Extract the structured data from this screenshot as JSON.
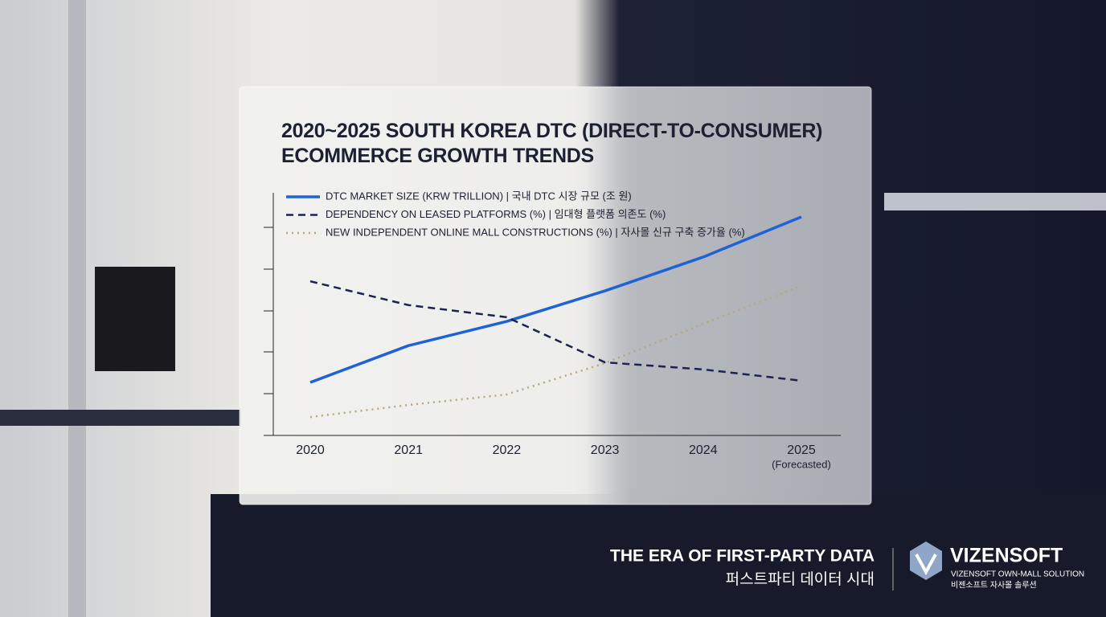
{
  "chart_data": {
    "type": "line",
    "title": "2020~2025 SOUTH KOREA DTC (DIRECT-TO-CONSUMER) ECOMMERCE GROWTH TRENDS",
    "categories": [
      "2020",
      "2021",
      "2022",
      "2023",
      "2024",
      "2025"
    ],
    "category_note": "(Forecasted)",
    "ylim": [
      0,
      6
    ],
    "series": [
      {
        "name": "DTC MARKET SIZE (KRW TRILLION) | 국내 DTC 시장 규모 (조 원)",
        "color": "#1e63d6",
        "dash": "solid",
        "values": [
          1.27,
          2.15,
          2.73,
          3.46,
          4.27,
          5.23
        ]
      },
      {
        "name": "DEPENDENCY ON LEASED PLATFORMS (%) | 임대형 플랫폼 의존도 (%)",
        "color": "#1b2450",
        "dash": "dashed",
        "values": [
          3.69,
          3.12,
          2.83,
          1.75,
          1.58,
          1.31
        ]
      },
      {
        "name": "NEW INDEPENDENT ONLINE MALL CONSTRUCTIONS (%) | 자사몰 신규 구축 증가율 (%)",
        "color": "#b8a77a",
        "dash": "dotted",
        "values": [
          0.44,
          0.73,
          0.98,
          1.73,
          2.67,
          3.58
        ]
      }
    ]
  },
  "footer": {
    "tagline": "THE ERA OF FIRST-PARTY DATA",
    "tagline_ko": "퍼스트파티 데이터 시대",
    "brand": "VIZENSOFT",
    "brand_sub": "VIZENSOFT OWN-MALL SOLUTION",
    "brand_sub_ko": "비젠소프트 자사몰 솔루션"
  }
}
